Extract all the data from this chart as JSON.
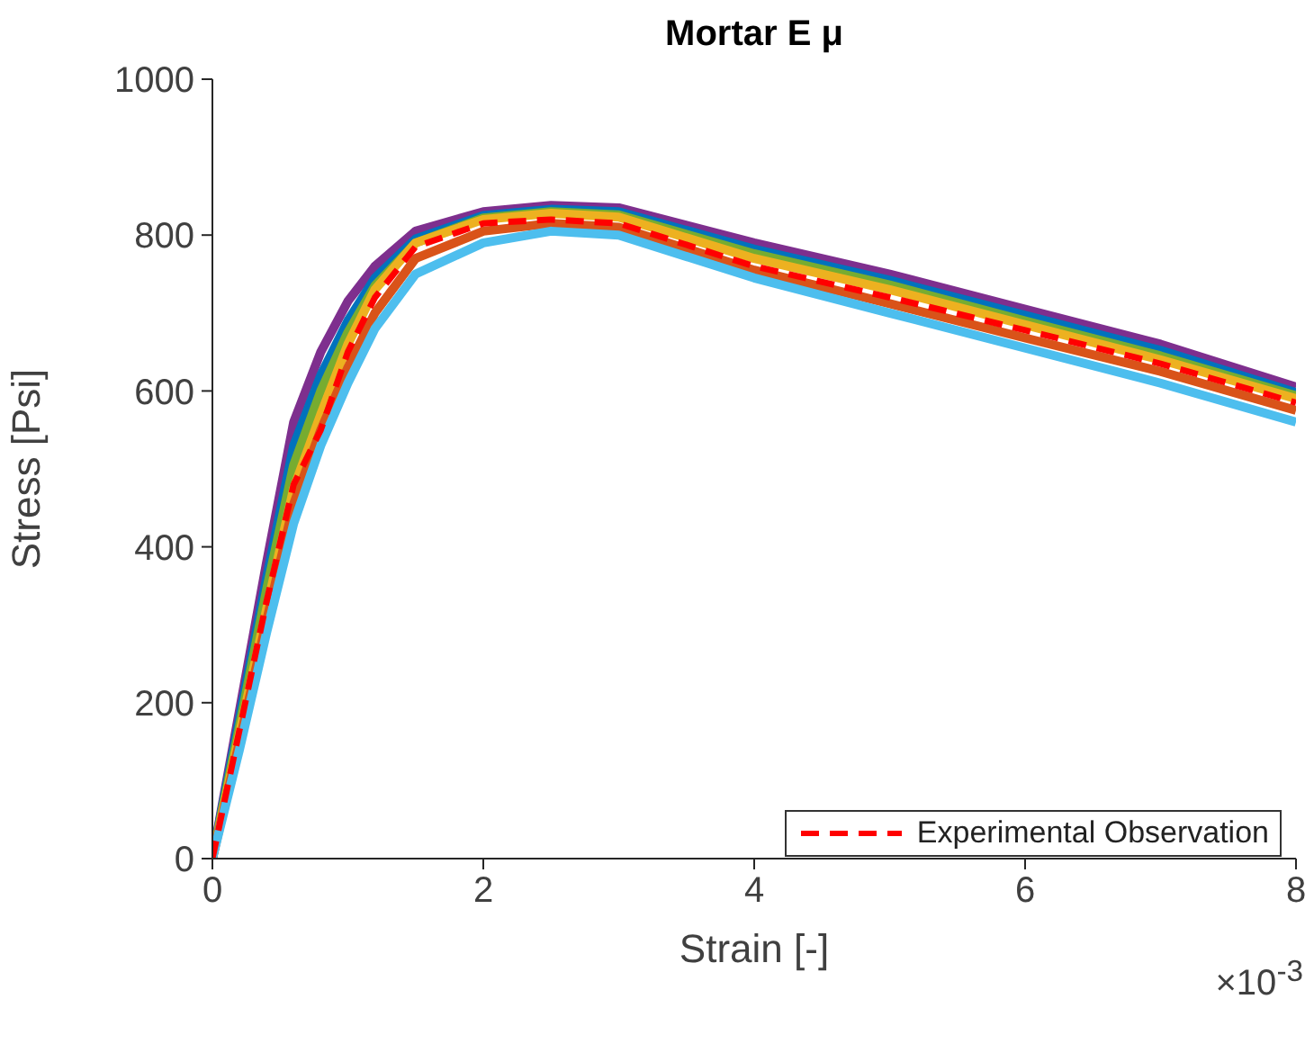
{
  "chart_data": {
    "type": "line",
    "title": "Mortar E μ",
    "xlabel": "Strain [-]",
    "ylabel": "Stress [Psi]",
    "annotations": [
      "×10$^{-3}$"
    ],
    "x": [
      0,
      0.2,
      0.4,
      0.6,
      0.8,
      1.0,
      1.2,
      1.5,
      2.0,
      2.5,
      3.0,
      4,
      5,
      6,
      7,
      8
    ],
    "xlim": [
      0,
      8
    ],
    "xticks": [
      0,
      2,
      4,
      6,
      8
    ],
    "ylim": [
      0,
      1000
    ],
    "yticks": [
      0,
      200,
      400,
      600,
      800,
      1000
    ],
    "grid": false,
    "legend": "bottom right",
    "marker": "none",
    "line_style": "solid",
    "series": [
      {
        "color": "#7e2f8e",
        "values": [
          0,
          190,
          380,
          560,
          650,
          715,
          760,
          805,
          830,
          838,
          835,
          790,
          750,
          705,
          660,
          605
        ]
      },
      {
        "color": "#0072bd",
        "values": [
          0,
          180,
          360,
          530,
          620,
          690,
          745,
          795,
          825,
          833,
          830,
          782,
          742,
          697,
          652,
          598
        ]
      },
      {
        "color": "#77ac30",
        "values": [
          0,
          170,
          345,
          505,
          600,
          675,
          735,
          790,
          822,
          830,
          826,
          776,
          736,
          690,
          645,
          594
        ]
      },
      {
        "color": "#edb120",
        "values": [
          0,
          160,
          320,
          475,
          570,
          660,
          730,
          790,
          820,
          828,
          823,
          770,
          730,
          685,
          640,
          590
        ]
      },
      {
        "color": "#d95319",
        "values": [
          0,
          150,
          305,
          455,
          550,
          630,
          700,
          770,
          805,
          815,
          810,
          755,
          712,
          668,
          625,
          575
        ]
      },
      {
        "color": "#4dbeee",
        "values": [
          0,
          140,
          290,
          430,
          530,
          610,
          680,
          750,
          790,
          805,
          800,
          745,
          700,
          655,
          610,
          560
        ]
      },
      {
        "name": "Experimental Observation",
        "color": "#ff0000",
        "line_style": "dashed",
        "values": [
          0,
          165,
          330,
          480,
          550,
          650,
          720,
          785,
          815,
          820,
          815,
          760,
          720,
          678,
          635,
          585
        ]
      }
    ]
  }
}
